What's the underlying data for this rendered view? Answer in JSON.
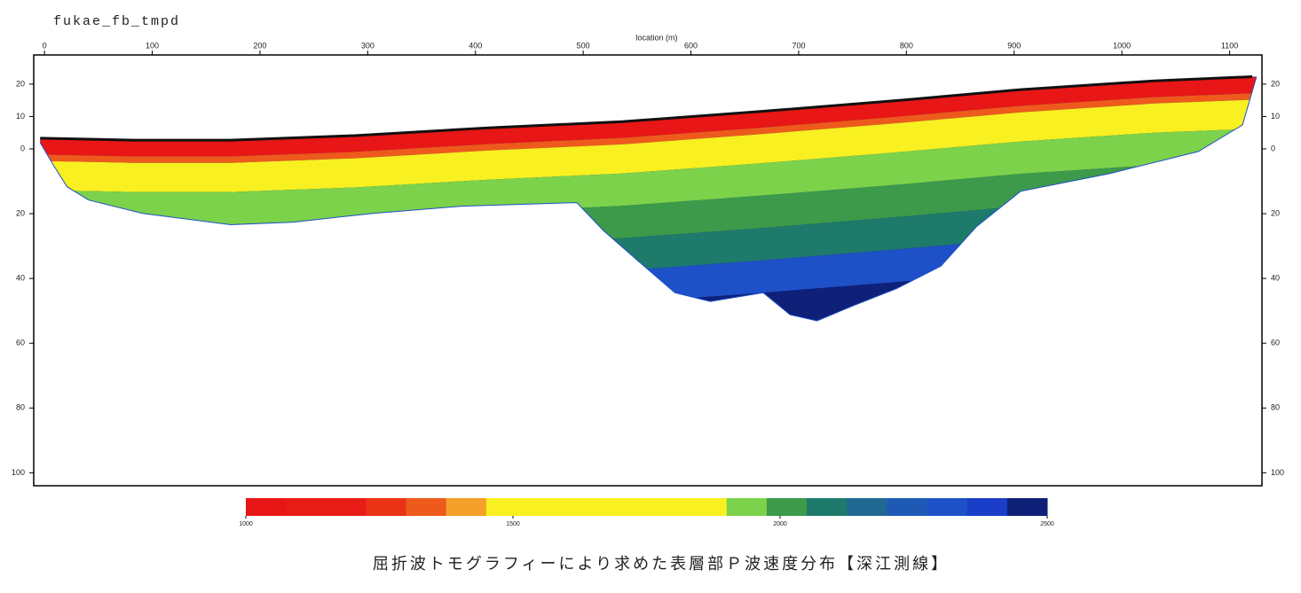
{
  "title": "fukae_fb_tmpd",
  "caption": "屈折波トモグラフィーにより求めた表層部Ｐ波速度分布【深江測線】",
  "chart_data": {
    "type": "section",
    "x_label": "location (m)",
    "xlim": [
      -10,
      1130
    ],
    "xticks": [
      0,
      100,
      200,
      300,
      400,
      500,
      600,
      700,
      800,
      900,
      1000,
      1100
    ],
    "ylim": [
      -104,
      29
    ],
    "yticks": [
      20,
      10,
      0,
      {
        "value": -20,
        "label": "20"
      },
      {
        "value": -40,
        "label": "40"
      },
      {
        "value": -60,
        "label": "60"
      },
      {
        "value": -80,
        "label": "80"
      },
      {
        "value": -100,
        "label": "100"
      }
    ],
    "surface": {
      "x": [
        -4,
        82,
        173,
        288,
        412,
        536,
        659,
        783,
        906,
        1030,
        1121
      ],
      "y": [
        3.3,
        2.7,
        2.7,
        4.1,
        6.5,
        8.4,
        11.4,
        14.7,
        18.3,
        21,
        22.3
      ]
    },
    "base": {
      "x": [
        -4,
        8,
        21,
        41,
        91,
        173,
        231,
        305,
        387,
        494,
        519,
        552,
        585,
        618,
        667,
        692,
        717,
        750,
        791,
        832,
        865,
        906,
        989,
        1071,
        1112,
        1125
      ],
      "y": [
        1.9,
        -4.9,
        -11.7,
        -15.8,
        -19.9,
        -23.4,
        -22.6,
        -19.9,
        -17.7,
        -16.6,
        -25.3,
        -34.9,
        -44.4,
        -47.1,
        -44.4,
        -51.2,
        -53.1,
        -48.5,
        -43.1,
        -36.2,
        -24,
        -13.1,
        -7.6,
        -0.8,
        7.4,
        22.3
      ]
    },
    "colorbar": {
      "lim": [
        1000,
        2500
      ],
      "ticks": [
        1000,
        1500,
        2000,
        2500
      ],
      "colors": [
        "#e81616",
        "#e81c16",
        "#e81c16",
        "#ea3216",
        "#ee5a1c",
        "#f4a02a",
        "#f8f020",
        "#f8f020",
        "#f8f020",
        "#f8f020",
        "#f8f020",
        "#f8f020",
        "#7cd24a",
        "#3c9a4a",
        "#1e7a6a",
        "#1e6892",
        "#1e5ab4",
        "#1e50c8",
        "#1a3ec8",
        "#0e2078"
      ]
    }
  }
}
